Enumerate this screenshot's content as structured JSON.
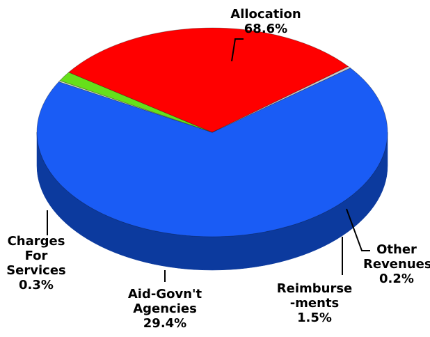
{
  "chart_data": {
    "type": "pie",
    "slices": [
      {
        "label": "Allocation",
        "label_lines": [
          "Allocation"
        ],
        "pct_text": "68.6%",
        "value": 68.6,
        "color": "#1a5cf5",
        "side_color": "#0c3a9e"
      },
      {
        "label": "Other Revenues",
        "label_lines": [
          "Other",
          "Revenues"
        ],
        "pct_text": "0.2%",
        "value": 0.2,
        "color": "#d4e8c0",
        "side_color": "#6b8a4a"
      },
      {
        "label": "Reimburse-ments",
        "label_lines": [
          "Reimburse",
          "-ments"
        ],
        "pct_text": "1.5%",
        "value": 1.5,
        "color": "#66e01a",
        "side_color": "#2f7a0c"
      },
      {
        "label": "Aid-Govn't Agencies",
        "label_lines": [
          "Aid-Govn't",
          "Agencies"
        ],
        "pct_text": "29.4%",
        "value": 29.4,
        "color": "#ff0000",
        "side_color": "#a80000"
      },
      {
        "label": "Charges For Services",
        "label_lines": [
          "Charges",
          "For",
          "Services"
        ],
        "pct_text": "0.3%",
        "value": 0.3,
        "color": "#c9c9c9",
        "side_color": "#6e6e6e"
      }
    ],
    "style": "3d"
  }
}
